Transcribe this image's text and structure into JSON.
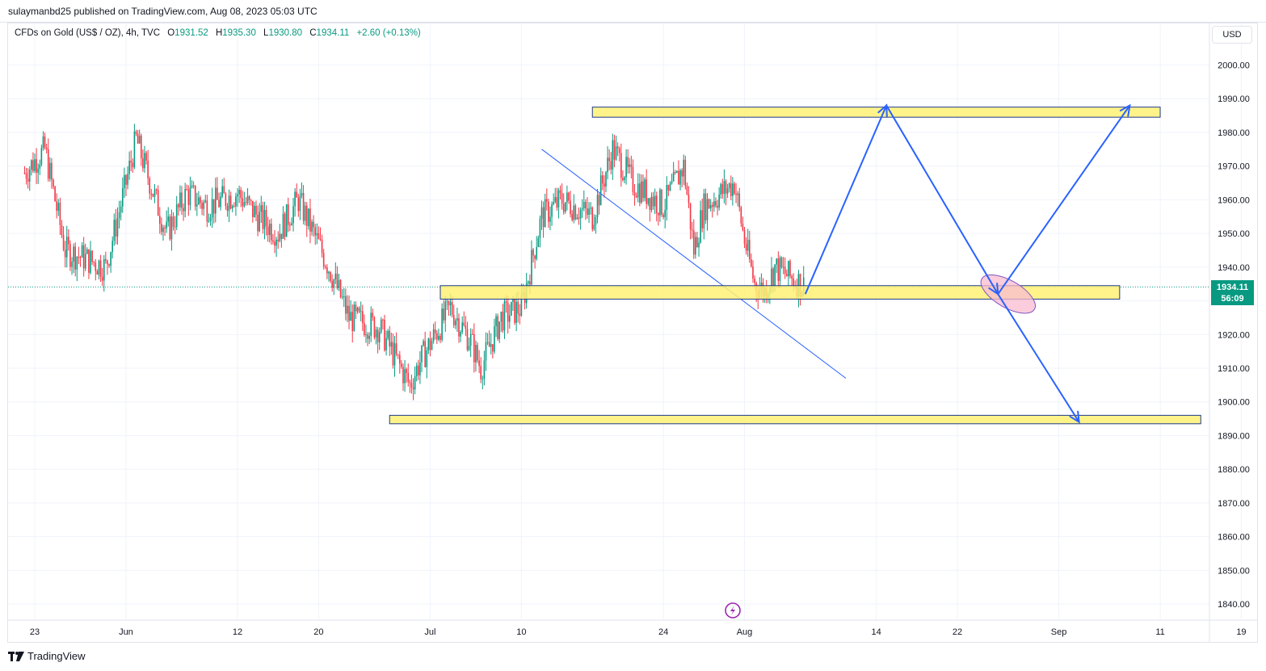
{
  "header": {
    "published_text": "sulaymanbd25 published on TradingView.com, Aug 08, 2023 05:03 UTC"
  },
  "legend": {
    "symbol": "CFDs on Gold (US$ / OZ), 4h, TVC",
    "open_label": "O",
    "open": "1931.52",
    "high_label": "H",
    "high": "1935.30",
    "low_label": "L",
    "low": "1930.80",
    "close_label": "C",
    "close": "1934.11",
    "change": "+2.60 (+0.13%)"
  },
  "currency_button": "USD",
  "price_tag": {
    "price": "1934.11",
    "countdown": "56:09"
  },
  "footer": {
    "brand": "TradingView"
  },
  "colors": {
    "up": "#089981",
    "down": "#f23645",
    "zone_fill": "#fff176",
    "zone_border": "#1e3a8a",
    "arrow": "#2962ff",
    "trendline": "#2962ff",
    "ellipse_fill": "#f8bbd0",
    "accent_purple": "#9c27b0"
  },
  "chart_data": {
    "type": "candlestick",
    "title": "CFDs on Gold (US$ / OZ), 4h, TVC",
    "ylim": [
      1835,
      2005
    ],
    "y_ticks": [
      2000,
      1990,
      1980,
      1970,
      1960,
      1950,
      1940,
      1930,
      1920,
      1910,
      1900,
      1890,
      1880,
      1870,
      1860,
      1850,
      1840
    ],
    "y_tick_labels": [
      "2000.00",
      "1990.00",
      "1980.00",
      "1970.00",
      "1960.00",
      "1950.00",
      "1940.00",
      "1930.00",
      "1920.00",
      "1910.00",
      "1900.00",
      "1890.00",
      "1880.00",
      "1870.00",
      "1860.00",
      "1850.00",
      "1840.00"
    ],
    "x_ticks": [
      {
        "date": "2023-05-23",
        "label": "23"
      },
      {
        "date": "2023-06-01",
        "label": "Jun"
      },
      {
        "date": "2023-06-12",
        "label": "12"
      },
      {
        "date": "2023-06-20",
        "label": "20"
      },
      {
        "date": "2023-07-01",
        "label": "Jul"
      },
      {
        "date": "2023-07-10",
        "label": "10"
      },
      {
        "date": "2023-07-24",
        "label": "24"
      },
      {
        "date": "2023-08-01",
        "label": "Aug"
      },
      {
        "date": "2023-08-14",
        "label": "14"
      },
      {
        "date": "2023-08-22",
        "label": "22"
      },
      {
        "date": "2023-09-01",
        "label": "Sep"
      },
      {
        "date": "2023-09-11",
        "label": "11"
      },
      {
        "date": "2023-09-19",
        "label": "19"
      }
    ],
    "last_price": 1934.11,
    "price_path": [
      {
        "date": "2023-05-22",
        "close": 1968
      },
      {
        "date": "2023-05-24",
        "close": 1975
      },
      {
        "date": "2023-05-26",
        "close": 1945
      },
      {
        "date": "2023-05-30",
        "close": 1940
      },
      {
        "date": "2023-06-01",
        "close": 1965
      },
      {
        "date": "2023-06-02",
        "close": 1978
      },
      {
        "date": "2023-06-05",
        "close": 1950
      },
      {
        "date": "2023-06-07",
        "close": 1962
      },
      {
        "date": "2023-06-09",
        "close": 1958
      },
      {
        "date": "2023-06-12",
        "close": 1962
      },
      {
        "date": "2023-06-14",
        "close": 1955
      },
      {
        "date": "2023-06-16",
        "close": 1950
      },
      {
        "date": "2023-06-18",
        "close": 1960
      },
      {
        "date": "2023-06-21",
        "close": 1940
      },
      {
        "date": "2023-06-23",
        "close": 1925
      },
      {
        "date": "2023-06-26",
        "close": 1922
      },
      {
        "date": "2023-06-29",
        "close": 1905
      },
      {
        "date": "2023-06-30",
        "close": 1912
      },
      {
        "date": "2023-07-03",
        "close": 1928
      },
      {
        "date": "2023-07-05",
        "close": 1918
      },
      {
        "date": "2023-07-06",
        "close": 1910
      },
      {
        "date": "2023-07-08",
        "close": 1925
      },
      {
        "date": "2023-07-10",
        "close": 1928
      },
      {
        "date": "2023-07-12",
        "close": 1955
      },
      {
        "date": "2023-07-14",
        "close": 1960
      },
      {
        "date": "2023-07-17",
        "close": 1955
      },
      {
        "date": "2023-07-19",
        "close": 1975
      },
      {
        "date": "2023-07-21",
        "close": 1965
      },
      {
        "date": "2023-07-24",
        "close": 1958
      },
      {
        "date": "2023-07-26",
        "close": 1970
      },
      {
        "date": "2023-07-27",
        "close": 1945
      },
      {
        "date": "2023-07-28",
        "close": 1958
      },
      {
        "date": "2023-07-31",
        "close": 1965
      },
      {
        "date": "2023-08-01",
        "close": 1948
      },
      {
        "date": "2023-08-02",
        "close": 1935
      },
      {
        "date": "2023-08-03",
        "close": 1933
      },
      {
        "date": "2023-08-04",
        "close": 1940
      },
      {
        "date": "2023-08-07",
        "close": 1934.11
      }
    ],
    "annotations": {
      "zones": [
        {
          "name": "resistance-zone",
          "from": "2023-07-17",
          "to": "2023-09-11",
          "low": 1984.5,
          "high": 1987.5
        },
        {
          "name": "support-zone",
          "from": "2023-07-02",
          "to": "2023-09-07",
          "low": 1930.5,
          "high": 1934.5
        },
        {
          "name": "target-zone",
          "from": "2023-06-27",
          "to": "2023-09-15",
          "low": 1893.5,
          "high": 1896
        },
        {
          "name": "ellipse",
          "from": "2023-08-24",
          "to": "2023-08-30",
          "low": 1928,
          "high": 1936
        }
      ],
      "trendline": {
        "from": {
          "date": "2023-07-12",
          "price": 1975
        },
        "to": {
          "date": "2023-08-11",
          "price": 1907
        }
      },
      "path": [
        {
          "date": "2023-08-07",
          "price": 1932
        },
        {
          "date": "2023-08-15",
          "price": 1988
        },
        {
          "date": "2023-08-26",
          "price": 1932
        },
        {
          "date": "2023-09-08",
          "price": 1988
        }
      ],
      "down_arrow": {
        "from": {
          "date": "2023-08-26",
          "price": 1932
        },
        "to": {
          "date": "2023-09-03",
          "price": 1894
        }
      }
    }
  }
}
